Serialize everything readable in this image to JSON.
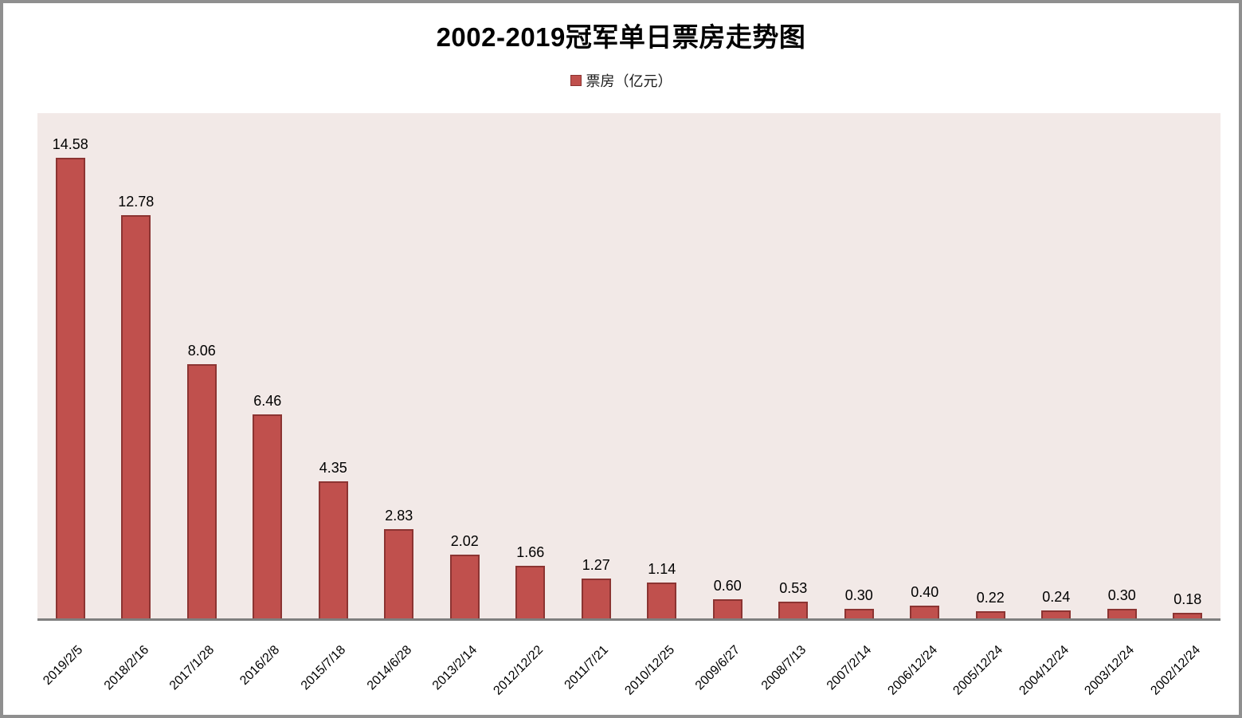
{
  "chart_data": {
    "type": "bar",
    "title": "2002-2019冠军单日票房走势图",
    "legend": "票房（亿元）",
    "legend_position": "top-center",
    "categories": [
      "2019/2/5",
      "2018/2/16",
      "2017/1/28",
      "2016/2/8",
      "2015/7/18",
      "2014/6/28",
      "2013/2/14",
      "2012/12/22",
      "2011/7/21",
      "2010/12/25",
      "2009/6/27",
      "2008/7/13",
      "2007/2/14",
      "2006/12/24",
      "2005/12/24",
      "2004/12/24",
      "2003/12/24",
      "2002/12/24"
    ],
    "values": [
      14.58,
      12.78,
      8.06,
      6.46,
      4.35,
      2.83,
      2.02,
      1.66,
      1.27,
      1.14,
      0.6,
      0.53,
      0.3,
      0.4,
      0.22,
      0.24,
      0.3,
      0.18
    ],
    "value_labels": [
      "14.58",
      "12.78",
      "8.06",
      "6.46",
      "4.35",
      "2.83",
      "2.02",
      "1.66",
      "1.27",
      "1.14",
      "0.60",
      "0.53",
      "0.30",
      "0.40",
      "0.22",
      "0.24",
      "0.30",
      "0.18"
    ],
    "xlabel": "",
    "ylabel": "",
    "ylim": [
      0,
      16
    ],
    "grid": false,
    "data_labels_shown": true,
    "colors": {
      "bar_fill": "#c0504d",
      "bar_border": "#8c3432",
      "plot_background": "#f2e9e7",
      "axis_line": "#7f7f7f",
      "text": "#000000",
      "frame_border": "#8f8f8f"
    }
  }
}
